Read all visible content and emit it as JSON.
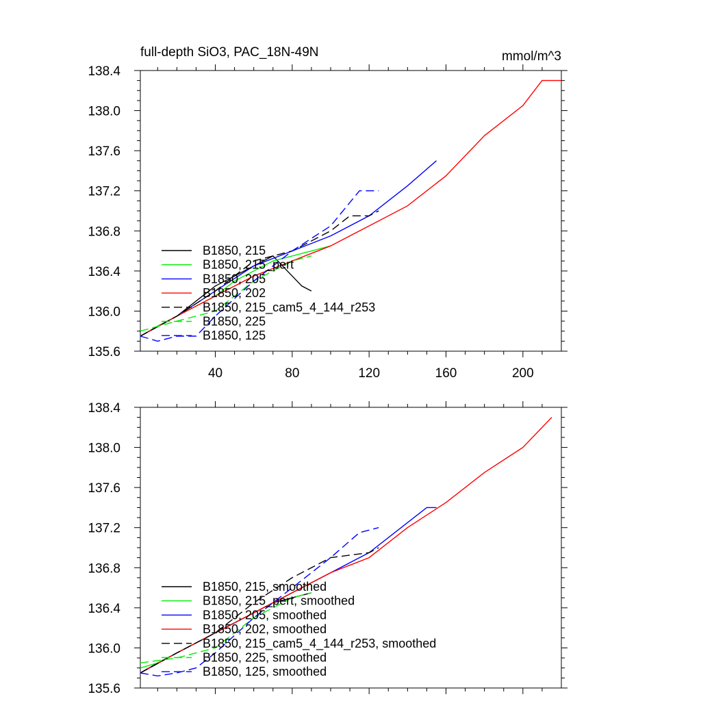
{
  "chart_data": [
    {
      "type": "line",
      "title": "full-depth SiO3, PAC_18N-49N",
      "units": "mmol/m^3",
      "xlabel": "",
      "ylabel": "",
      "xlim": [
        1,
        220
      ],
      "ylim": [
        135.6,
        138.4
      ],
      "x_ticks": [
        40,
        80,
        120,
        160,
        200
      ],
      "y_ticks": [
        135.6,
        136.0,
        136.4,
        136.8,
        137.2,
        137.6,
        138.0,
        138.4
      ],
      "y_tick_labels": [
        "135.6",
        "136.0",
        "136.4",
        "136.8",
        "137.2",
        "137.6",
        "138.0",
        "138.4"
      ],
      "x_tick_labels": [
        "40",
        "80",
        "120",
        "160",
        "200"
      ],
      "legend_position": "lower-left",
      "series": [
        {
          "name": "B1850, 215",
          "color": "#000000",
          "dash": "solid",
          "x": [
            1,
            10,
            20,
            30,
            40,
            50,
            60,
            70,
            80,
            85,
            90
          ],
          "values": [
            135.75,
            135.85,
            135.95,
            136.1,
            136.25,
            136.35,
            136.45,
            136.55,
            136.35,
            136.25,
            136.2
          ]
        },
        {
          "name": "B1850, 215_pert",
          "color": "#00ee00",
          "dash": "solid",
          "x": [
            1,
            10,
            20,
            30,
            40,
            50,
            60,
            70,
            80,
            90,
            100
          ],
          "values": [
            135.75,
            135.85,
            135.95,
            136.05,
            136.15,
            136.3,
            136.4,
            136.5,
            136.55,
            136.6,
            136.65
          ]
        },
        {
          "name": "B1850, 205",
          "color": "#0000ff",
          "dash": "solid",
          "x": [
            1,
            20,
            40,
            60,
            80,
            100,
            120,
            140,
            155
          ],
          "values": [
            135.75,
            135.95,
            136.2,
            136.45,
            136.6,
            136.75,
            136.95,
            137.25,
            137.5
          ]
        },
        {
          "name": "B1850, 202",
          "color": "#ff0000",
          "dash": "solid",
          "x": [
            1,
            20,
            40,
            60,
            80,
            100,
            120,
            140,
            160,
            180,
            200,
            210,
            220
          ],
          "values": [
            135.75,
            135.95,
            136.15,
            136.35,
            136.5,
            136.65,
            136.85,
            137.05,
            137.35,
            137.75,
            138.05,
            138.3,
            138.3
          ]
        },
        {
          "name": "B1850, 215_cam5_4_144_r253",
          "color": "#000000",
          "dash": "dashed",
          "x": [
            1,
            20,
            40,
            60,
            80,
            100,
            110,
            120,
            125
          ],
          "values": [
            135.75,
            135.95,
            136.2,
            136.5,
            136.6,
            136.8,
            136.95,
            136.95,
            137.0
          ]
        },
        {
          "name": "B1850, 225",
          "color": "#00ee00",
          "dash": "dashed",
          "x": [
            1,
            20,
            40,
            60,
            80,
            90
          ],
          "values": [
            135.8,
            135.9,
            136.0,
            136.3,
            136.5,
            136.55
          ]
        },
        {
          "name": "B1850, 125",
          "color": "#0000ff",
          "dash": "dashed",
          "x": [
            1,
            10,
            20,
            30,
            40,
            60,
            80,
            100,
            115,
            125
          ],
          "values": [
            135.75,
            135.7,
            135.75,
            135.75,
            135.95,
            136.3,
            136.6,
            136.85,
            137.2,
            137.2
          ]
        }
      ]
    },
    {
      "type": "line",
      "title": "",
      "xlabel": "",
      "ylabel": "",
      "xlim": [
        1,
        220
      ],
      "ylim": [
        135.6,
        138.4
      ],
      "x_ticks": [
        40,
        80,
        120,
        160,
        200
      ],
      "y_ticks": [
        135.6,
        136.0,
        136.4,
        136.8,
        137.2,
        137.6,
        138.0,
        138.4
      ],
      "y_tick_labels": [
        "135.6",
        "136.0",
        "136.4",
        "136.8",
        "137.2",
        "137.6",
        "138.0",
        "138.4"
      ],
      "legend_position": "lower-left",
      "series": [
        {
          "name": "B1850, 215, smoothed",
          "color": "#000000",
          "dash": "solid",
          "x": [
            1,
            10,
            20,
            30,
            40,
            50,
            60,
            70,
            80,
            90
          ],
          "values": [
            135.75,
            135.85,
            135.95,
            136.05,
            136.15,
            136.25,
            136.35,
            136.45,
            136.5,
            136.55
          ]
        },
        {
          "name": "B1850, 215_pert, smoothed",
          "color": "#00ee00",
          "dash": "solid",
          "x": [
            1,
            10,
            20,
            30,
            40,
            50,
            60,
            70,
            80,
            90,
            100
          ],
          "values": [
            135.8,
            135.85,
            135.95,
            136.05,
            136.15,
            136.25,
            136.35,
            136.45,
            136.55,
            136.65,
            136.75
          ]
        },
        {
          "name": "B1850, 205, smoothed",
          "color": "#0000ff",
          "dash": "solid",
          "x": [
            1,
            20,
            40,
            60,
            80,
            100,
            120,
            140,
            150,
            155
          ],
          "values": [
            135.75,
            135.95,
            136.15,
            136.35,
            136.55,
            136.75,
            136.95,
            137.25,
            137.4,
            137.4
          ]
        },
        {
          "name": "B1850, 202, smoothed",
          "color": "#ff0000",
          "dash": "solid",
          "x": [
            1,
            20,
            40,
            60,
            80,
            100,
            120,
            140,
            160,
            180,
            200,
            215
          ],
          "values": [
            135.75,
            135.95,
            136.15,
            136.35,
            136.55,
            136.75,
            136.9,
            137.2,
            137.45,
            137.75,
            138.0,
            138.3
          ]
        },
        {
          "name": "B1850, 215_cam5_4_144_r253, smoothed",
          "color": "#000000",
          "dash": "dashed",
          "x": [
            1,
            20,
            40,
            60,
            80,
            100,
            120,
            125
          ],
          "values": [
            135.75,
            135.95,
            136.15,
            136.45,
            136.7,
            136.9,
            136.95,
            137.0
          ]
        },
        {
          "name": "B1850, 225, smoothed",
          "color": "#00ee00",
          "dash": "dashed",
          "x": [
            1,
            20,
            40,
            60,
            80,
            90
          ],
          "values": [
            135.85,
            135.9,
            136.0,
            136.3,
            136.5,
            136.55
          ]
        },
        {
          "name": "B1850, 125, smoothed",
          "color": "#0000ff",
          "dash": "dashed",
          "x": [
            1,
            10,
            20,
            30,
            40,
            60,
            80,
            100,
            115,
            125
          ],
          "values": [
            135.75,
            135.72,
            135.75,
            135.8,
            135.95,
            136.3,
            136.6,
            136.9,
            137.15,
            137.2
          ]
        }
      ]
    }
  ]
}
